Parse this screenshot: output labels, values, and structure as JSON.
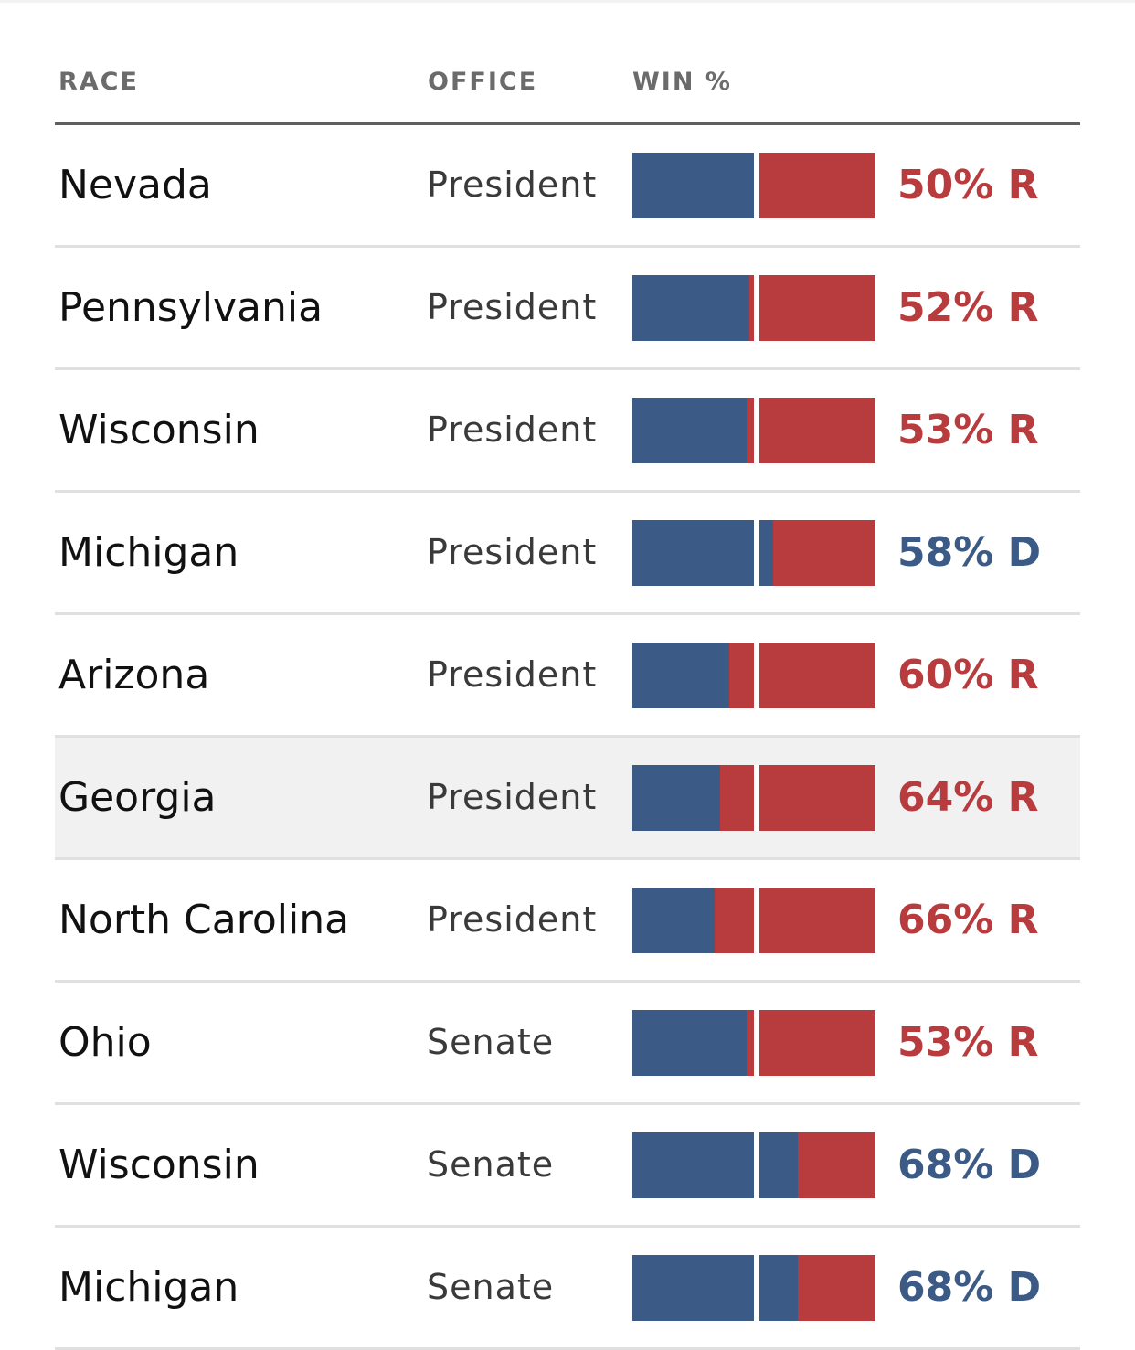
{
  "header": {
    "race": "RACE",
    "office": "OFFICE",
    "win": "WIN %"
  },
  "colors": {
    "dem": "#3b5a86",
    "rep": "#b83b3e",
    "highlight_row": "#f1f1f1"
  },
  "highlighted_row": 5,
  "rows": [
    {
      "race": "Nevada",
      "office": "President",
      "label": "50% R",
      "dem_win": 0.5,
      "leader": "R"
    },
    {
      "race": "Pennsylvania",
      "office": "President",
      "label": "52% R",
      "dem_win": 0.48,
      "leader": "R"
    },
    {
      "race": "Wisconsin",
      "office": "President",
      "label": "53% R",
      "dem_win": 0.47,
      "leader": "R"
    },
    {
      "race": "Michigan",
      "office": "President",
      "label": "58% D",
      "dem_win": 0.58,
      "leader": "D"
    },
    {
      "race": "Arizona",
      "office": "President",
      "label": "60% R",
      "dem_win": 0.4,
      "leader": "R"
    },
    {
      "race": "Georgia",
      "office": "President",
      "label": "64% R",
      "dem_win": 0.36,
      "leader": "R"
    },
    {
      "race": "North Carolina",
      "office": "President",
      "label": "66% R",
      "dem_win": 0.34,
      "leader": "R"
    },
    {
      "race": "Ohio",
      "office": "Senate",
      "label": "53% R",
      "dem_win": 0.47,
      "leader": "R"
    },
    {
      "race": "Wisconsin",
      "office": "Senate",
      "label": "68% D",
      "dem_win": 0.68,
      "leader": "D"
    },
    {
      "race": "Michigan",
      "office": "Senate",
      "label": "68% D",
      "dem_win": 0.68,
      "leader": "D"
    }
  ]
}
